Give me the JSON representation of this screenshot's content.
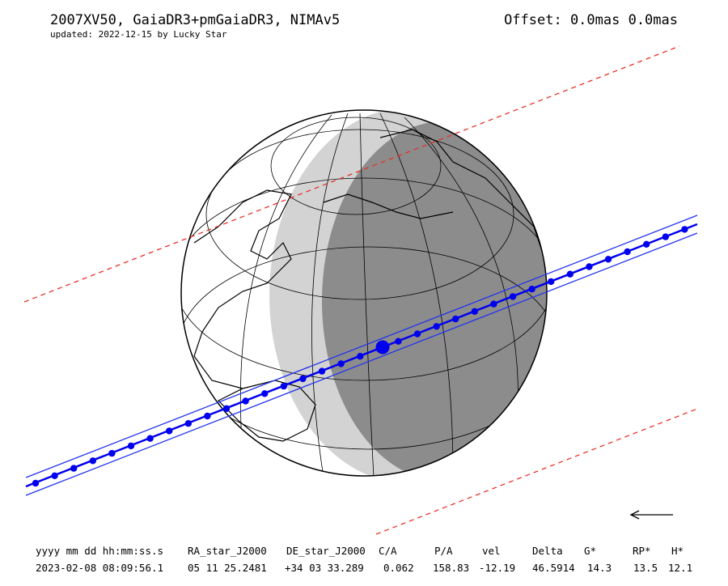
{
  "header": {
    "title": "2007XV50, GaiaDR3+pmGaiaDR3, NIMAv5",
    "subtitle": "updated: 2022-12-15 by Lucky Star",
    "offset": "Offset: 0.0mas 0.0mas"
  },
  "table": {
    "columns": [
      "yyyy mm dd hh:mm:ss.s",
      "RA_star_J2000",
      "DE_star_J2000",
      "C/A",
      "P/A",
      "vel",
      "Delta",
      "G*",
      "RP*",
      "H*"
    ],
    "rows": [
      [
        "2023-02-08 08:09:56.1",
        "05 11 25.2481",
        "+34 03 33.289",
        "0.062",
        "158.83",
        "-12.19",
        "46.5914",
        "14.3",
        "13.5",
        "12.1"
      ]
    ]
  }
}
